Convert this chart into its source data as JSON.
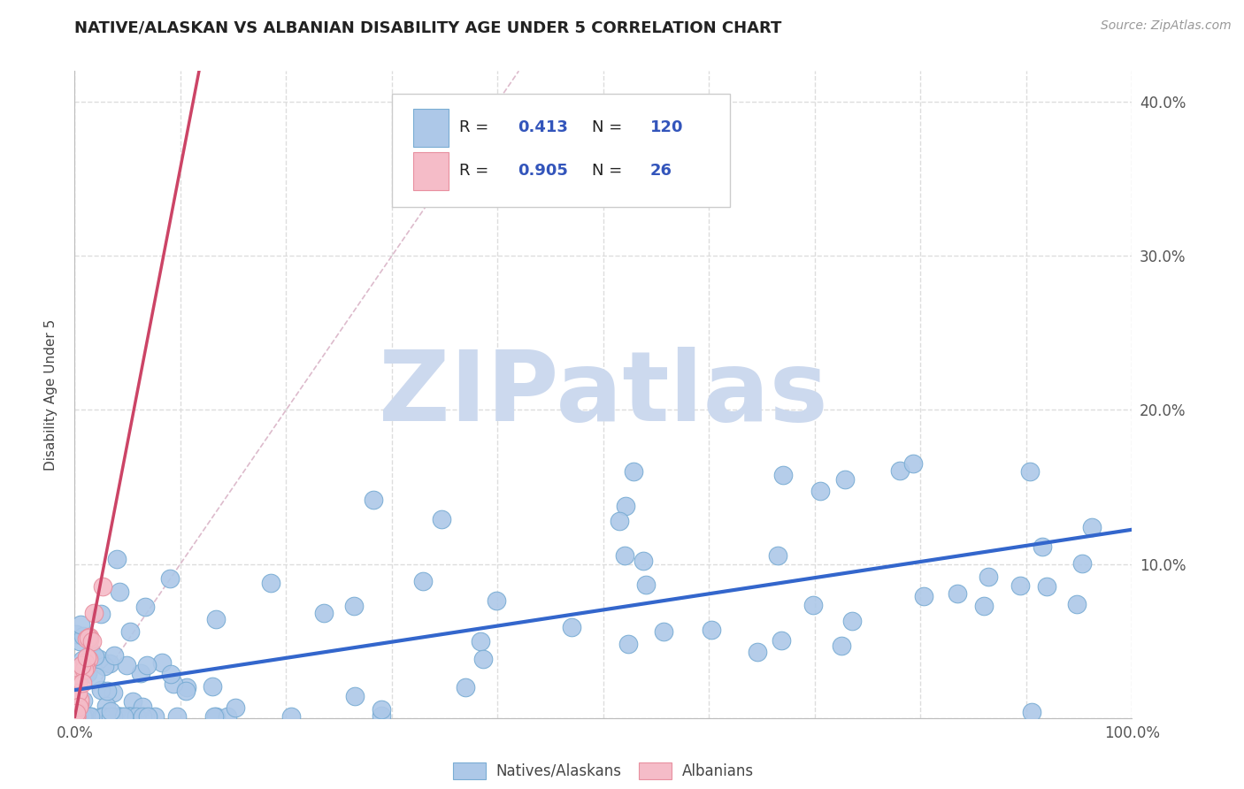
{
  "title": "NATIVE/ALASKAN VS ALBANIAN DISABILITY AGE UNDER 5 CORRELATION CHART",
  "source": "Source: ZipAtlas.com",
  "ylabel": "Disability Age Under 5",
  "xlim": [
    0,
    1.0
  ],
  "ylim": [
    0,
    0.42
  ],
  "xticks": [
    0.0,
    0.1,
    0.2,
    0.3,
    0.4,
    0.5,
    0.6,
    0.7,
    0.8,
    0.9,
    1.0
  ],
  "yticks": [
    0.0,
    0.1,
    0.2,
    0.3,
    0.4
  ],
  "xticklabels": [
    "0.0%",
    "",
    "",
    "",
    "",
    "",
    "",
    "",
    "",
    "",
    "100.0%"
  ],
  "yticklabels_right": [
    "",
    "10.0%",
    "20.0%",
    "30.0%",
    "40.0%"
  ],
  "blue_color": "#adc8e8",
  "blue_edge_color": "#7aadd4",
  "pink_color": "#f5bcc8",
  "pink_edge_color": "#e890a0",
  "blue_line_color": "#3366cc",
  "pink_line_color": "#cc4466",
  "diag_line_color": "#cccccc",
  "R_blue": 0.413,
  "N_blue": 120,
  "R_pink": 0.905,
  "N_pink": 26,
  "watermark_text": "ZIPatlas",
  "watermark_color": "#ccd9ee",
  "background_color": "#ffffff",
  "grid_color": "#dddddd",
  "legend_text_color": "#222222",
  "legend_value_color": "#3355bb"
}
